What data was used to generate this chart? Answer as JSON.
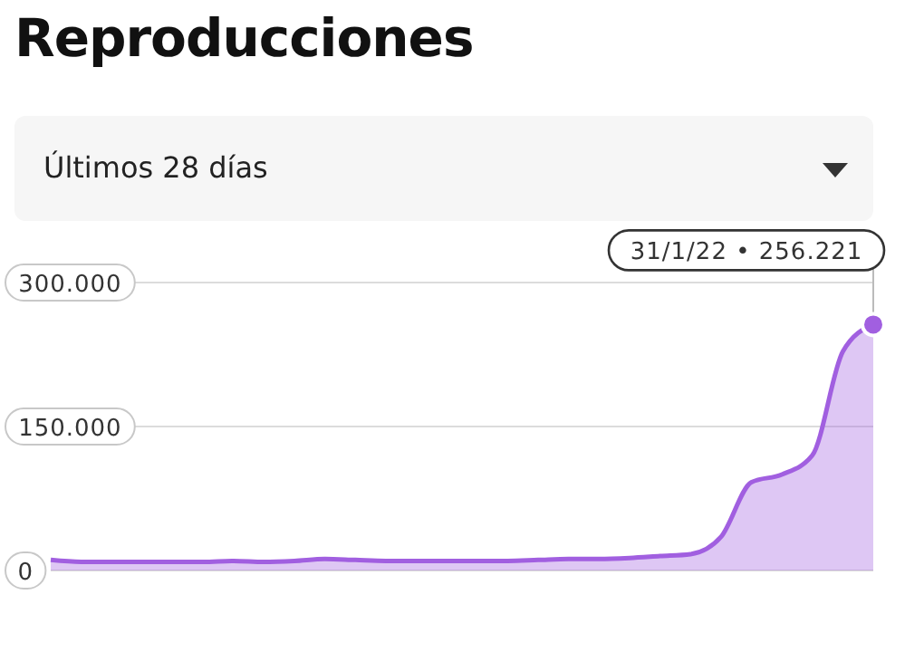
{
  "chart_data": {
    "type": "area",
    "title": "Reproducciones",
    "subtitle": "Últimos 28 días",
    "categories": [
      null,
      null,
      null,
      null,
      null,
      null,
      null,
      null,
      null,
      null,
      null,
      null,
      null,
      null,
      null,
      null,
      null,
      null,
      null,
      null,
      null,
      null,
      null,
      null,
      null,
      null,
      null,
      null
    ],
    "series": [
      {
        "color": "#a15fe0",
        "values": [
          11000,
          9000,
          9000,
          9000,
          9000,
          9000,
          10000,
          9000,
          10000,
          12000,
          11000,
          10000,
          10000,
          10000,
          10000,
          10000,
          11000,
          12000,
          12000,
          13000,
          15000,
          17000,
          35000,
          92000,
          100000,
          120000,
          228000,
          256221
        ]
      }
    ],
    "ylim": [
      0,
      300000
    ],
    "yticks": [
      {
        "value": 0,
        "label": "0"
      },
      {
        "value": 150000,
        "label": "150.000"
      },
      {
        "value": 300000,
        "label": "300.000"
      }
    ],
    "grid": "y",
    "tick_labels": "y",
    "annotations": [
      "31/1/22 • 256.221"
    ]
  }
}
